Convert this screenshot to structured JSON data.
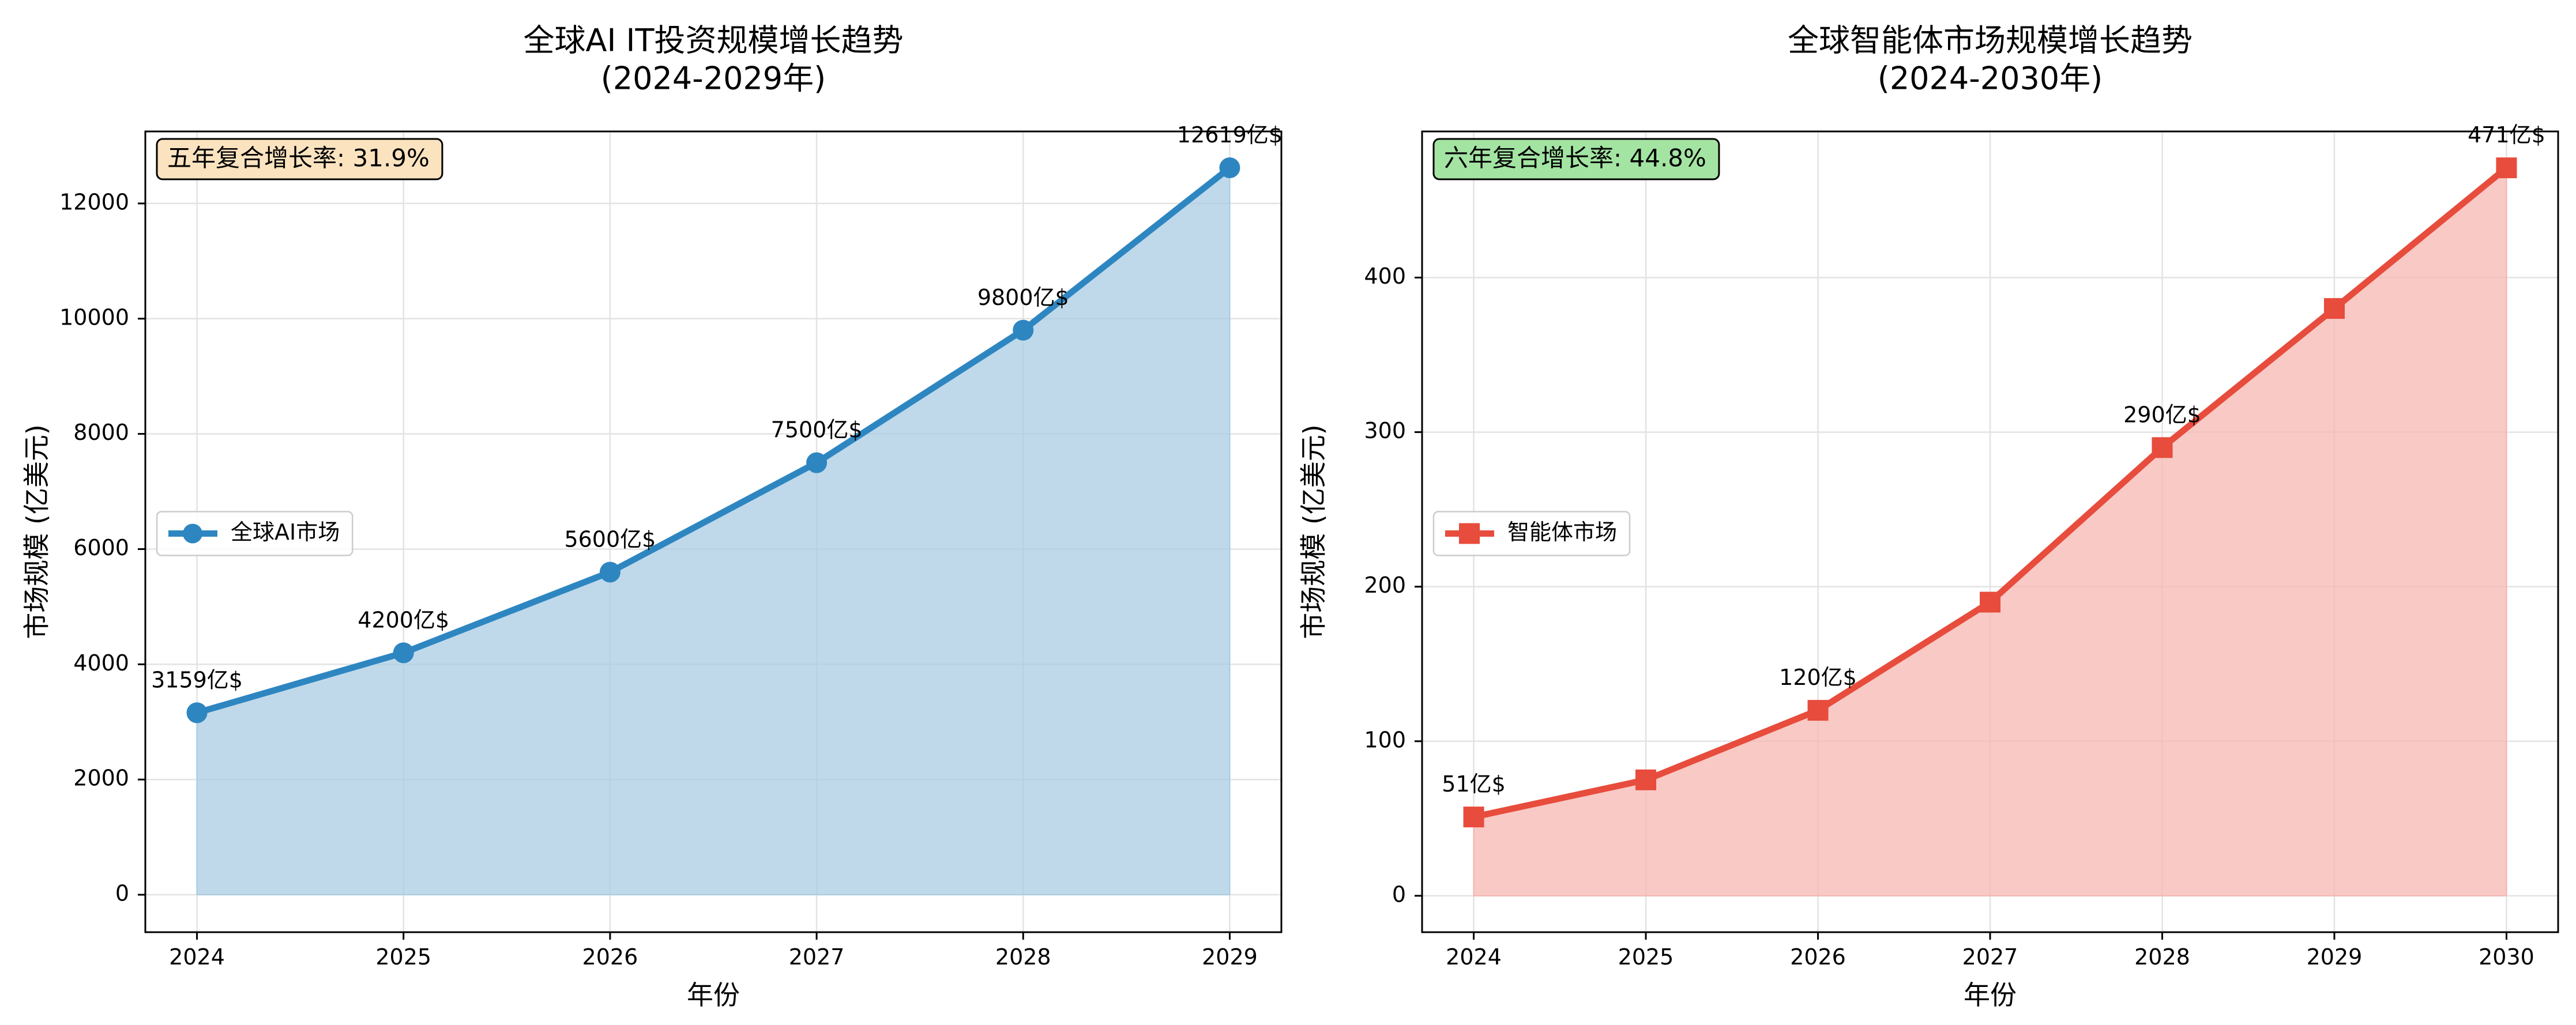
{
  "chart_data": [
    {
      "type": "area",
      "title": "全球AI IT投资规模增长趋势",
      "subtitle": "(2024-2029年)",
      "xlabel": "年份",
      "ylabel": "市场规模 (亿美元)",
      "x": [
        2024,
        2025,
        2026,
        2027,
        2028,
        2029
      ],
      "xticks": [
        "2024",
        "2025",
        "2026",
        "2027",
        "2028",
        "2029"
      ],
      "xlim": [
        2023.75,
        2029.25
      ],
      "ylim": [
        -650,
        13250
      ],
      "yticks": [
        0,
        2000,
        4000,
        6000,
        8000,
        10000,
        12000
      ],
      "grid": true,
      "legend_position": "center-left",
      "series": [
        {
          "name": "全球AI市场",
          "values": [
            3159,
            4200,
            5600,
            7500,
            9800,
            12619
          ],
          "marker": "circle",
          "color": "#2e86c1",
          "fill_color": "#a9cce3",
          "data_labels": [
            "3159亿$",
            "4200亿$",
            "5600亿$",
            "7500亿$",
            "9800亿$",
            "12619亿$"
          ]
        }
      ],
      "annotation": {
        "text": "五年复合增长率: 31.9%",
        "background": "#fbe3c0",
        "position": "top-left"
      }
    },
    {
      "type": "area",
      "title": "全球智能体市场规模增长趋势",
      "subtitle": "(2024-2030年)",
      "xlabel": "年份",
      "ylabel": "市场规模 (亿美元)",
      "x": [
        2024,
        2025,
        2026,
        2027,
        2028,
        2029,
        2030
      ],
      "xticks": [
        "2024",
        "2025",
        "2026",
        "2027",
        "2028",
        "2029",
        "2030"
      ],
      "xlim": [
        2023.7,
        2030.3
      ],
      "ylim": [
        -23.55,
        494.55
      ],
      "yticks": [
        0,
        100,
        200,
        300,
        400
      ],
      "grid": true,
      "legend_position": "center-left",
      "series": [
        {
          "name": "智能体市场",
          "values": [
            51,
            75,
            120,
            190,
            290,
            380,
            471
          ],
          "marker": "square",
          "color": "#e74c3c",
          "fill_color": "#f5b7b1",
          "data_labels": [
            "51亿$",
            "",
            "120亿$",
            "",
            "290亿$",
            "",
            "471亿$"
          ]
        }
      ],
      "annotation": {
        "text": "六年复合增长率: 44.8%",
        "background": "#a3e4a3",
        "position": "top-left"
      }
    }
  ]
}
